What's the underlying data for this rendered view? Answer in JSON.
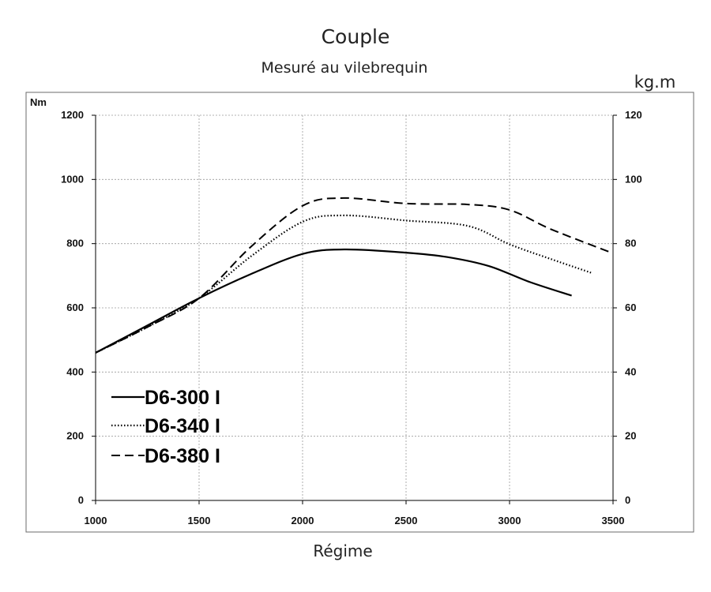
{
  "chart_data": {
    "type": "line",
    "title": "Couple",
    "subtitle": "Mesuré au vilebrequin",
    "xlabel": "Régime",
    "ylabel_left": "Nm",
    "ylabel_right": "kg.m",
    "xlim": [
      1000,
      3500
    ],
    "ylim": [
      0,
      1200
    ],
    "ylim_right": [
      0,
      120
    ],
    "x_ticks": [
      1000,
      1500,
      2000,
      2500,
      3000,
      3500
    ],
    "y_ticks": [
      0,
      200,
      400,
      600,
      800,
      1000,
      1200
    ],
    "y_ticks_right": [
      0,
      20,
      40,
      60,
      80,
      100,
      120
    ],
    "grid": true,
    "legend_position": "bottom-left",
    "series": [
      {
        "name": "D6-300 I",
        "line_style": "solid",
        "x": [
          1000,
          1250,
          1500,
          1750,
          2000,
          2200,
          2500,
          2700,
          2900,
          3100,
          3300
        ],
        "y": [
          460,
          545,
          630,
          705,
          768,
          782,
          772,
          758,
          730,
          680,
          638
        ]
      },
      {
        "name": "D6-340 I",
        "line_style": "dotted",
        "x": [
          1000,
          1250,
          1500,
          1750,
          2000,
          2200,
          2500,
          2800,
          3000,
          3200,
          3400
        ],
        "y": [
          460,
          540,
          630,
          760,
          868,
          888,
          872,
          855,
          798,
          752,
          708
        ]
      },
      {
        "name": "D6-380 I",
        "line_style": "dashed",
        "x": [
          1000,
          1250,
          1500,
          1750,
          2000,
          2200,
          2500,
          2800,
          3000,
          3200,
          3500
        ],
        "y": [
          460,
          540,
          630,
          790,
          918,
          942,
          925,
          922,
          905,
          845,
          770
        ]
      }
    ]
  }
}
